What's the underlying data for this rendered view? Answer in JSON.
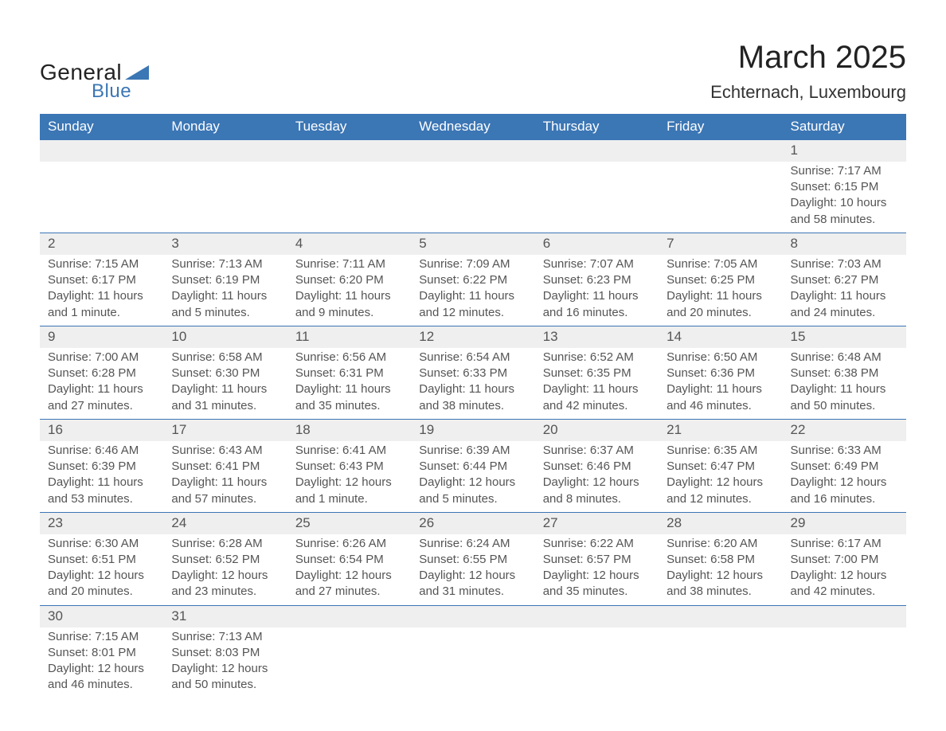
{
  "logo": {
    "text_general": "General",
    "text_blue": "Blue",
    "brand_color": "#3b76b5",
    "text_color": "#222222"
  },
  "title": "March 2025",
  "subtitle": "Echternach, Luxembourg",
  "colors": {
    "header_bg": "#3b76b5",
    "header_text": "#ffffff",
    "daynum_bg": "#efefef",
    "row_border": "#3b76b5",
    "body_text": "#555555",
    "page_bg": "#ffffff"
  },
  "days_of_week": [
    "Sunday",
    "Monday",
    "Tuesday",
    "Wednesday",
    "Thursday",
    "Friday",
    "Saturday"
  ],
  "weeks": [
    {
      "nums": [
        "",
        "",
        "",
        "",
        "",
        "",
        "1"
      ],
      "details": [
        "",
        "",
        "",
        "",
        "",
        "",
        "Sunrise: 7:17 AM\nSunset: 6:15 PM\nDaylight: 10 hours and 58 minutes."
      ]
    },
    {
      "nums": [
        "2",
        "3",
        "4",
        "5",
        "6",
        "7",
        "8"
      ],
      "details": [
        "Sunrise: 7:15 AM\nSunset: 6:17 PM\nDaylight: 11 hours and 1 minute.",
        "Sunrise: 7:13 AM\nSunset: 6:19 PM\nDaylight: 11 hours and 5 minutes.",
        "Sunrise: 7:11 AM\nSunset: 6:20 PM\nDaylight: 11 hours and 9 minutes.",
        "Sunrise: 7:09 AM\nSunset: 6:22 PM\nDaylight: 11 hours and 12 minutes.",
        "Sunrise: 7:07 AM\nSunset: 6:23 PM\nDaylight: 11 hours and 16 minutes.",
        "Sunrise: 7:05 AM\nSunset: 6:25 PM\nDaylight: 11 hours and 20 minutes.",
        "Sunrise: 7:03 AM\nSunset: 6:27 PM\nDaylight: 11 hours and 24 minutes."
      ]
    },
    {
      "nums": [
        "9",
        "10",
        "11",
        "12",
        "13",
        "14",
        "15"
      ],
      "details": [
        "Sunrise: 7:00 AM\nSunset: 6:28 PM\nDaylight: 11 hours and 27 minutes.",
        "Sunrise: 6:58 AM\nSunset: 6:30 PM\nDaylight: 11 hours and 31 minutes.",
        "Sunrise: 6:56 AM\nSunset: 6:31 PM\nDaylight: 11 hours and 35 minutes.",
        "Sunrise: 6:54 AM\nSunset: 6:33 PM\nDaylight: 11 hours and 38 minutes.",
        "Sunrise: 6:52 AM\nSunset: 6:35 PM\nDaylight: 11 hours and 42 minutes.",
        "Sunrise: 6:50 AM\nSunset: 6:36 PM\nDaylight: 11 hours and 46 minutes.",
        "Sunrise: 6:48 AM\nSunset: 6:38 PM\nDaylight: 11 hours and 50 minutes."
      ]
    },
    {
      "nums": [
        "16",
        "17",
        "18",
        "19",
        "20",
        "21",
        "22"
      ],
      "details": [
        "Sunrise: 6:46 AM\nSunset: 6:39 PM\nDaylight: 11 hours and 53 minutes.",
        "Sunrise: 6:43 AM\nSunset: 6:41 PM\nDaylight: 11 hours and 57 minutes.",
        "Sunrise: 6:41 AM\nSunset: 6:43 PM\nDaylight: 12 hours and 1 minute.",
        "Sunrise: 6:39 AM\nSunset: 6:44 PM\nDaylight: 12 hours and 5 minutes.",
        "Sunrise: 6:37 AM\nSunset: 6:46 PM\nDaylight: 12 hours and 8 minutes.",
        "Sunrise: 6:35 AM\nSunset: 6:47 PM\nDaylight: 12 hours and 12 minutes.",
        "Sunrise: 6:33 AM\nSunset: 6:49 PM\nDaylight: 12 hours and 16 minutes."
      ]
    },
    {
      "nums": [
        "23",
        "24",
        "25",
        "26",
        "27",
        "28",
        "29"
      ],
      "details": [
        "Sunrise: 6:30 AM\nSunset: 6:51 PM\nDaylight: 12 hours and 20 minutes.",
        "Sunrise: 6:28 AM\nSunset: 6:52 PM\nDaylight: 12 hours and 23 minutes.",
        "Sunrise: 6:26 AM\nSunset: 6:54 PM\nDaylight: 12 hours and 27 minutes.",
        "Sunrise: 6:24 AM\nSunset: 6:55 PM\nDaylight: 12 hours and 31 minutes.",
        "Sunrise: 6:22 AM\nSunset: 6:57 PM\nDaylight: 12 hours and 35 minutes.",
        "Sunrise: 6:20 AM\nSunset: 6:58 PM\nDaylight: 12 hours and 38 minutes.",
        "Sunrise: 6:17 AM\nSunset: 7:00 PM\nDaylight: 12 hours and 42 minutes."
      ]
    },
    {
      "nums": [
        "30",
        "31",
        "",
        "",
        "",
        "",
        ""
      ],
      "details": [
        "Sunrise: 7:15 AM\nSunset: 8:01 PM\nDaylight: 12 hours and 46 minutes.",
        "Sunrise: 7:13 AM\nSunset: 8:03 PM\nDaylight: 12 hours and 50 minutes.",
        "",
        "",
        "",
        "",
        ""
      ]
    }
  ]
}
